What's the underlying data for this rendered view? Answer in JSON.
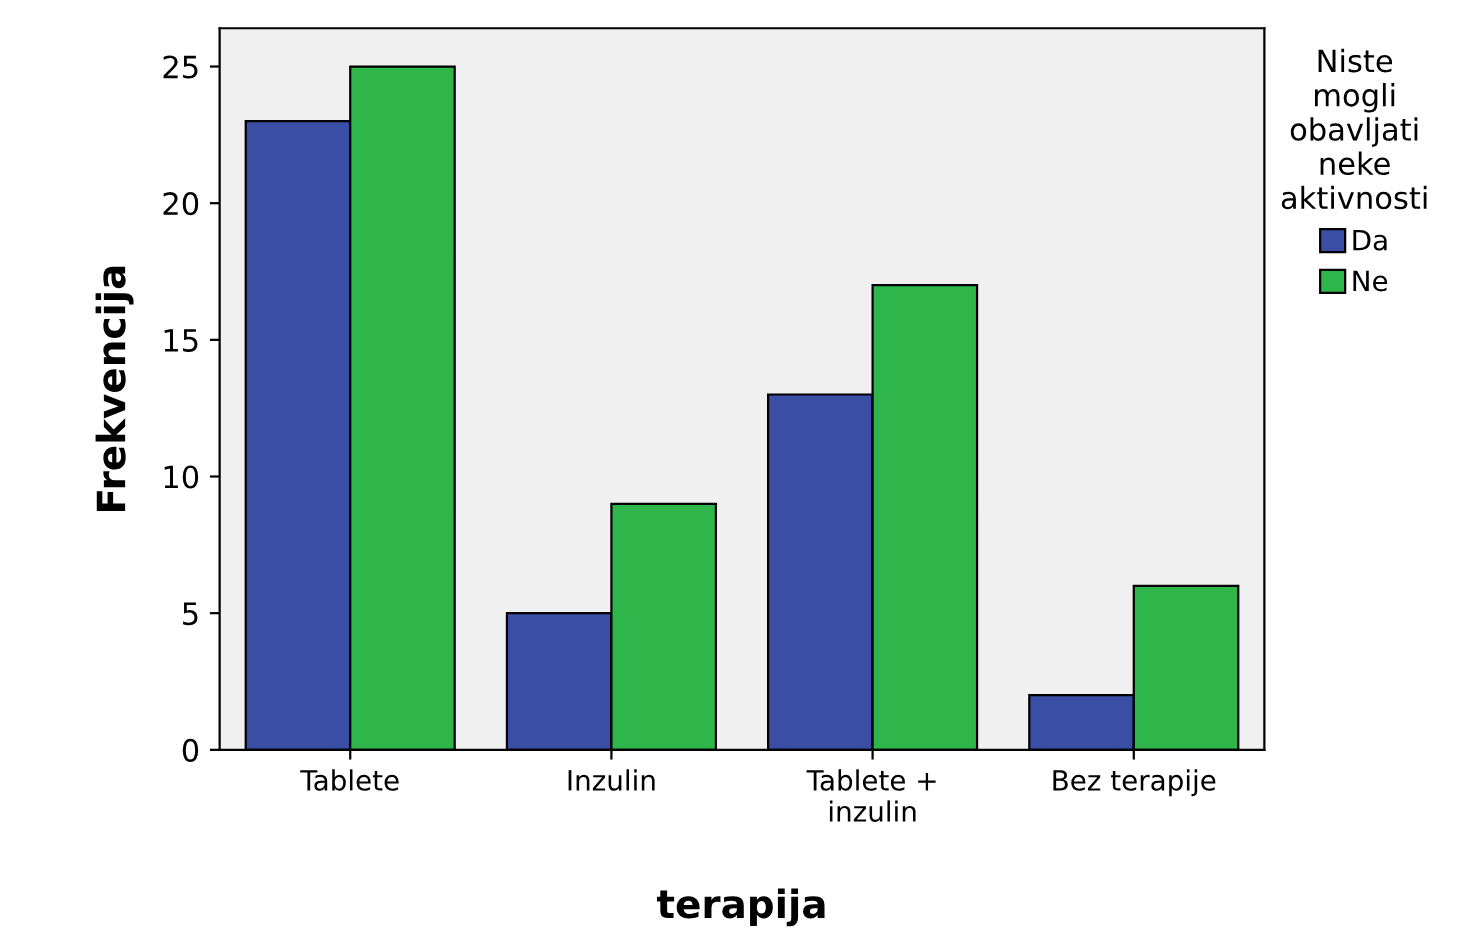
{
  "chart_data": {
    "type": "bar",
    "xlabel": "terapija",
    "ylabel": "Frekvencija",
    "legend_title": "Niste\nmogli\nobavljati\nneke\naktivnosti",
    "legend": "right",
    "categories": [
      "Tablete",
      "Inzulin",
      "Tablete +\ninzulin",
      "Bez terapije"
    ],
    "series": [
      {
        "name": "Da",
        "color": "#3a4ea6",
        "values": [
          23,
          5,
          13,
          2
        ]
      },
      {
        "name": "Ne",
        "color": "#2fb64a",
        "values": [
          25,
          9,
          17,
          6
        ]
      }
    ],
    "ylim": [
      0,
      26.4
    ],
    "yticks": [
      0,
      5,
      10,
      15,
      20,
      25
    ],
    "grid": false
  }
}
